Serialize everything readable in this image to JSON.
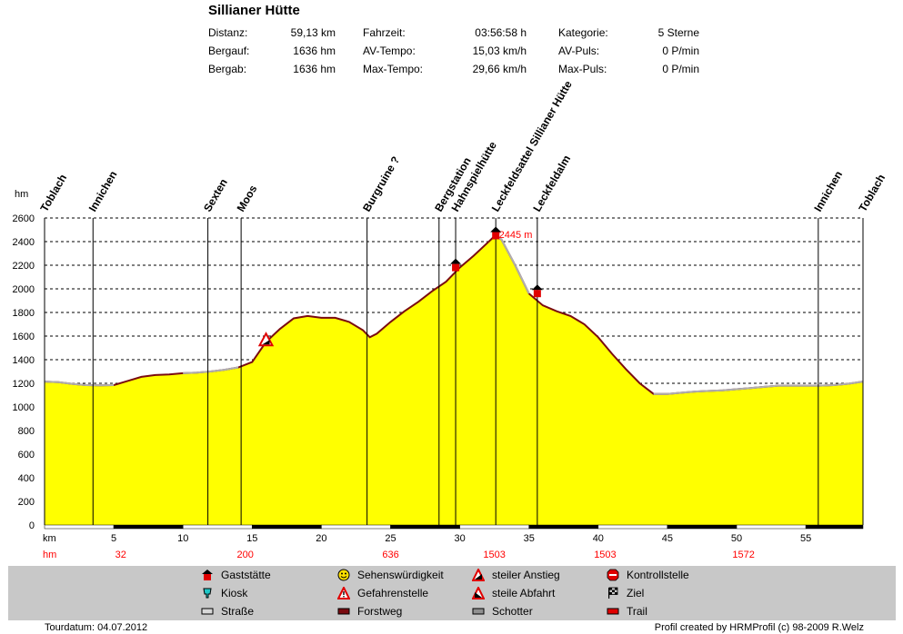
{
  "title": "Sillianer Hütte",
  "stats": [
    {
      "label": "Distanz:",
      "value": "59,13 km"
    },
    {
      "label": "Bergauf:",
      "value": "1636 hm"
    },
    {
      "label": "Bergab:",
      "value": "1636 hm"
    },
    {
      "label": "Fahrzeit:",
      "value": "03:56:58 h"
    },
    {
      "label": "AV-Tempo:",
      "value": "15,03 km/h"
    },
    {
      "label": "Max-Tempo:",
      "value": "29,66 km/h"
    },
    {
      "label": "Kategorie:",
      "value": "5 Sterne"
    },
    {
      "label": "AV-Puls:",
      "value": "0 P/min"
    },
    {
      "label": "Max-Puls:",
      "value": "0 P/min"
    }
  ],
  "chart_data": {
    "type": "area",
    "ylabel": "hm",
    "xlabel": "km",
    "xlim": [
      0,
      59.13
    ],
    "ylim": [
      0,
      2600
    ],
    "yticks": [
      0,
      200,
      400,
      600,
      800,
      1000,
      1200,
      1400,
      1600,
      1800,
      2000,
      2200,
      2400,
      2600
    ],
    "xticks": [
      5,
      10,
      15,
      20,
      25,
      30,
      35,
      40,
      45,
      50,
      55
    ],
    "grid": true,
    "series": [
      {
        "x": [
          0,
          1,
          2,
          3,
          4,
          5,
          6,
          7,
          8,
          9,
          10,
          11,
          12,
          13,
          14,
          15,
          16,
          17,
          18,
          19,
          20,
          21,
          22,
          23,
          23.5,
          24,
          25,
          26,
          27,
          28,
          29,
          30,
          31,
          32,
          32.5,
          33,
          34,
          35,
          36,
          37,
          38,
          39,
          40,
          41,
          42,
          43,
          44,
          45,
          46,
          47,
          48,
          49,
          50,
          51,
          52,
          53,
          54,
          55,
          56,
          57,
          58,
          59.13
        ],
        "y": [
          1215,
          1210,
          1195,
          1185,
          1182,
          1185,
          1220,
          1255,
          1270,
          1275,
          1285,
          1290,
          1300,
          1315,
          1335,
          1380,
          1550,
          1660,
          1750,
          1770,
          1755,
          1755,
          1720,
          1650,
          1590,
          1620,
          1720,
          1810,
          1890,
          1980,
          2060,
          2180,
          2280,
          2390,
          2445,
          2420,
          2200,
          1960,
          1860,
          1810,
          1770,
          1700,
          1590,
          1450,
          1320,
          1200,
          1110,
          1110,
          1120,
          1130,
          1135,
          1140,
          1150,
          1160,
          1170,
          1180,
          1180,
          1180,
          1180,
          1185,
          1195,
          1215
        ]
      }
    ],
    "annotation": "2445 m",
    "waypoints": [
      {
        "name": "Toblach",
        "km": 0
      },
      {
        "name": "Innichen",
        "km": 3.5
      },
      {
        "name": "Sexten",
        "km": 11.8
      },
      {
        "name": "Moos",
        "km": 14.2
      },
      {
        "name": "Burgruine ?",
        "km": 23.3
      },
      {
        "name": "Bergstation",
        "km": 28.5
      },
      {
        "name": "Hahnspielhütte",
        "km": 29.7
      },
      {
        "name": "Leckfeldsattel Sillianer Hütte",
        "km": 32.6
      },
      {
        "name": "Leckfeldalm",
        "km": 35.6
      },
      {
        "name": "Innichen",
        "km": 55.9
      },
      {
        "name": "Toblach",
        "km": 59.13
      }
    ],
    "hm_row_label": "hm",
    "hm_row": [
      {
        "km": 5.5,
        "value": "32"
      },
      {
        "km": 14.5,
        "value": "200"
      },
      {
        "km": 25,
        "value": "636"
      },
      {
        "km": 32.5,
        "value": "1503"
      },
      {
        "km": 40.5,
        "value": "1503"
      },
      {
        "km": 50.5,
        "value": "1572"
      }
    ]
  },
  "legend": [
    {
      "icon": "restaurant-icon",
      "label": "Gaststätte"
    },
    {
      "icon": "kiosk-icon",
      "label": "Kiosk"
    },
    {
      "icon": "road-swatch-icon",
      "label": "Straße"
    },
    {
      "icon": "smiley-icon",
      "label": "Sehenswürdigkeit"
    },
    {
      "icon": "danger-icon",
      "label": "Gefahrenstelle"
    },
    {
      "icon": "forest-road-swatch-icon",
      "label": "Forstweg"
    },
    {
      "icon": "steep-climb-icon",
      "label": "steiler Anstieg"
    },
    {
      "icon": "steep-descent-icon",
      "label": "steile Abfahrt"
    },
    {
      "icon": "gravel-swatch-icon",
      "label": "Schotter"
    },
    {
      "icon": "stop-icon",
      "label": "Kontrollstelle"
    },
    {
      "icon": "finish-flag-icon",
      "label": "Ziel"
    },
    {
      "icon": "trail-swatch-icon",
      "label": "Trail"
    }
  ],
  "colors": {
    "fill": "#ffff00",
    "outline": "#7a0b10",
    "asphalt": "#b0b0b0",
    "accent": "#ff0000"
  },
  "footer": {
    "left": "Tourdatum: 04.07.2012",
    "right": "Profil created by HRMProfil (c) 98-2009 R.Welz"
  }
}
